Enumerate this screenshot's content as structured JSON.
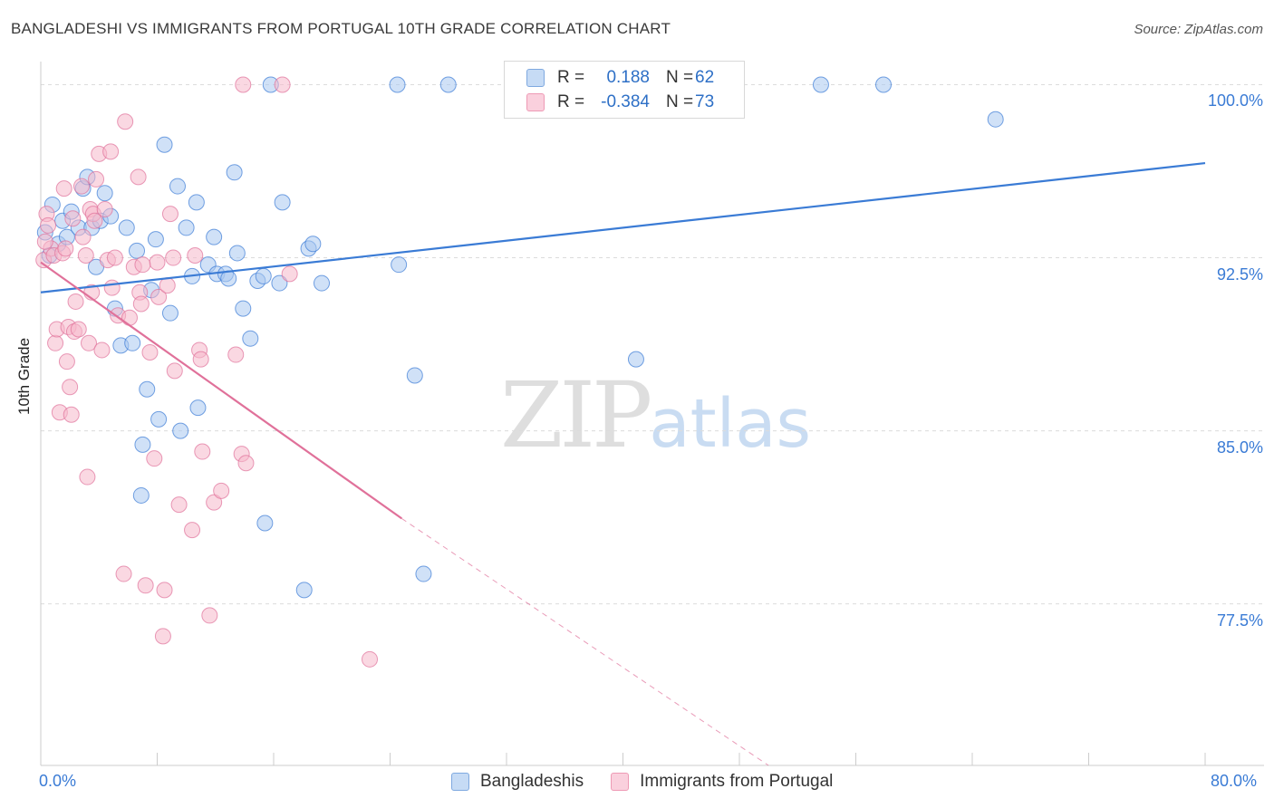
{
  "header": {
    "title": "BANGLADESHI VS IMMIGRANTS FROM PORTUGAL 10TH GRADE CORRELATION CHART",
    "source": "Source: ZipAtlas.com"
  },
  "legend": {
    "rows": [
      {
        "r_label": "R =",
        "r_value": "0.188",
        "n_label": "N =",
        "n_value": "62",
        "color": "#a9c8f0"
      },
      {
        "r_label": "R =",
        "r_value": "-0.384",
        "n_label": "N =",
        "n_value": "73",
        "color": "#f6b8cb"
      }
    ]
  },
  "bottom_legend": {
    "items": [
      {
        "label": "Bangladeshis",
        "color": "#a9c8f0"
      },
      {
        "label": "Immigrants from Portugal",
        "color": "#f6b8cb"
      }
    ]
  },
  "watermark": {
    "zip": "ZIP",
    "atlas": "atlas"
  },
  "chart_data": {
    "type": "scatter",
    "title": "BANGLADESHI VS IMMIGRANTS FROM PORTUGAL 10TH GRADE CORRELATION CHART",
    "xlabel": "",
    "ylabel": "10th Grade",
    "xlim": [
      0,
      80
    ],
    "ylim": [
      70.5,
      101
    ],
    "x_tick_labels": [
      "0.0%",
      "80.0%"
    ],
    "y_ticks": [
      77.5,
      85.0,
      92.5,
      100.0
    ],
    "y_tick_labels": [
      "77.5%",
      "85.0%",
      "92.5%",
      "100.0%"
    ],
    "grid": "horizontal dashed",
    "legend_position": "top-center",
    "series": [
      {
        "name": "Bangladeshis",
        "color": "#3a7bd5",
        "fill": "#a9c8f0",
        "trend": {
          "x": [
            0,
            80
          ],
          "y": [
            91.0,
            96.6
          ]
        },
        "points": [
          [
            0.3,
            93.6
          ],
          [
            0.6,
            92.6
          ],
          [
            0.8,
            94.8
          ],
          [
            1.2,
            93.1
          ],
          [
            1.5,
            94.1
          ],
          [
            1.8,
            93.4
          ],
          [
            2.1,
            94.5
          ],
          [
            2.6,
            93.8
          ],
          [
            2.9,
            95.5
          ],
          [
            3.2,
            96.0
          ],
          [
            3.5,
            93.8
          ],
          [
            3.8,
            92.1
          ],
          [
            4.1,
            94.1
          ],
          [
            4.4,
            95.3
          ],
          [
            4.8,
            94.3
          ],
          [
            5.1,
            90.3
          ],
          [
            5.5,
            88.7
          ],
          [
            5.9,
            93.8
          ],
          [
            6.3,
            88.8
          ],
          [
            6.6,
            92.8
          ],
          [
            6.9,
            82.2
          ],
          [
            7.0,
            84.4
          ],
          [
            7.3,
            86.8
          ],
          [
            7.6,
            91.1
          ],
          [
            7.9,
            93.3
          ],
          [
            8.1,
            85.5
          ],
          [
            8.5,
            97.4
          ],
          [
            8.9,
            90.1
          ],
          [
            9.4,
            95.6
          ],
          [
            9.6,
            85.0
          ],
          [
            10.0,
            93.8
          ],
          [
            10.4,
            91.7
          ],
          [
            10.8,
            86.0
          ],
          [
            10.7,
            94.9
          ],
          [
            11.5,
            92.2
          ],
          [
            11.9,
            93.4
          ],
          [
            12.1,
            91.8
          ],
          [
            12.7,
            91.8
          ],
          [
            12.9,
            91.6
          ],
          [
            13.3,
            96.2
          ],
          [
            13.5,
            92.7
          ],
          [
            13.9,
            90.3
          ],
          [
            14.4,
            89.0
          ],
          [
            14.9,
            91.5
          ],
          [
            15.3,
            91.7
          ],
          [
            15.4,
            81.0
          ],
          [
            16.4,
            91.4
          ],
          [
            16.6,
            94.9
          ],
          [
            18.1,
            78.1
          ],
          [
            18.4,
            92.9
          ],
          [
            18.7,
            93.1
          ],
          [
            19.3,
            91.4
          ],
          [
            15.8,
            100.0
          ],
          [
            24.5,
            100.0
          ],
          [
            28.0,
            100.0
          ],
          [
            24.6,
            92.2
          ],
          [
            25.7,
            87.4
          ],
          [
            26.3,
            78.8
          ],
          [
            40.9,
            88.1
          ],
          [
            53.6,
            100.0
          ],
          [
            57.9,
            100.0
          ],
          [
            65.6,
            98.5
          ]
        ]
      },
      {
        "name": "Immigrants from Portugal",
        "color": "#e0719a",
        "fill": "#f6b8cb",
        "trend": {
          "x": [
            0,
            24.8
          ],
          "y": [
            92.3,
            81.2
          ]
        },
        "trend_dashed_to": {
          "x": 50,
          "y": 70.5
        },
        "points": [
          [
            0.2,
            92.4
          ],
          [
            0.4,
            94.4
          ],
          [
            0.5,
            93.9
          ],
          [
            0.7,
            92.9
          ],
          [
            0.9,
            92.6
          ],
          [
            1.0,
            88.8
          ],
          [
            1.1,
            89.4
          ],
          [
            1.3,
            85.8
          ],
          [
            1.5,
            92.7
          ],
          [
            1.6,
            95.5
          ],
          [
            1.7,
            92.9
          ],
          [
            1.8,
            88.0
          ],
          [
            1.9,
            89.5
          ],
          [
            2.0,
            86.9
          ],
          [
            2.1,
            85.7
          ],
          [
            2.3,
            89.3
          ],
          [
            2.4,
            90.6
          ],
          [
            2.6,
            89.4
          ],
          [
            2.8,
            95.6
          ],
          [
            2.9,
            93.4
          ],
          [
            3.1,
            92.6
          ],
          [
            3.2,
            83.0
          ],
          [
            3.3,
            88.8
          ],
          [
            3.4,
            94.6
          ],
          [
            3.5,
            91.0
          ],
          [
            3.6,
            94.4
          ],
          [
            3.8,
            95.9
          ],
          [
            4.0,
            97.0
          ],
          [
            4.2,
            88.5
          ],
          [
            4.4,
            94.6
          ],
          [
            4.6,
            92.4
          ],
          [
            4.8,
            97.1
          ],
          [
            4.9,
            91.2
          ],
          [
            5.1,
            92.5
          ],
          [
            5.3,
            90.0
          ],
          [
            5.7,
            78.8
          ],
          [
            5.8,
            98.4
          ],
          [
            6.1,
            89.9
          ],
          [
            6.4,
            92.1
          ],
          [
            6.7,
            96.0
          ],
          [
            6.8,
            91.0
          ],
          [
            6.9,
            90.5
          ],
          [
            7.2,
            78.3
          ],
          [
            7.5,
            88.4
          ],
          [
            7.8,
            83.8
          ],
          [
            8.0,
            92.3
          ],
          [
            8.1,
            90.8
          ],
          [
            8.4,
            76.1
          ],
          [
            8.5,
            78.1
          ],
          [
            8.7,
            91.3
          ],
          [
            8.9,
            94.4
          ],
          [
            9.1,
            92.5
          ],
          [
            9.2,
            87.6
          ],
          [
            9.5,
            81.8
          ],
          [
            10.4,
            80.7
          ],
          [
            10.9,
            88.5
          ],
          [
            11.0,
            88.1
          ],
          [
            11.1,
            84.1
          ],
          [
            11.6,
            77.0
          ],
          [
            11.9,
            81.9
          ],
          [
            12.4,
            82.4
          ],
          [
            13.4,
            88.3
          ],
          [
            13.8,
            84.0
          ],
          [
            14.1,
            83.6
          ],
          [
            13.9,
            100.0
          ],
          [
            16.6,
            100.0
          ],
          [
            17.1,
            91.8
          ],
          [
            22.6,
            75.1
          ],
          [
            0.3,
            93.2
          ],
          [
            2.2,
            94.2
          ],
          [
            3.7,
            94.1
          ],
          [
            7.0,
            92.2
          ],
          [
            10.6,
            92.6
          ]
        ]
      }
    ]
  }
}
